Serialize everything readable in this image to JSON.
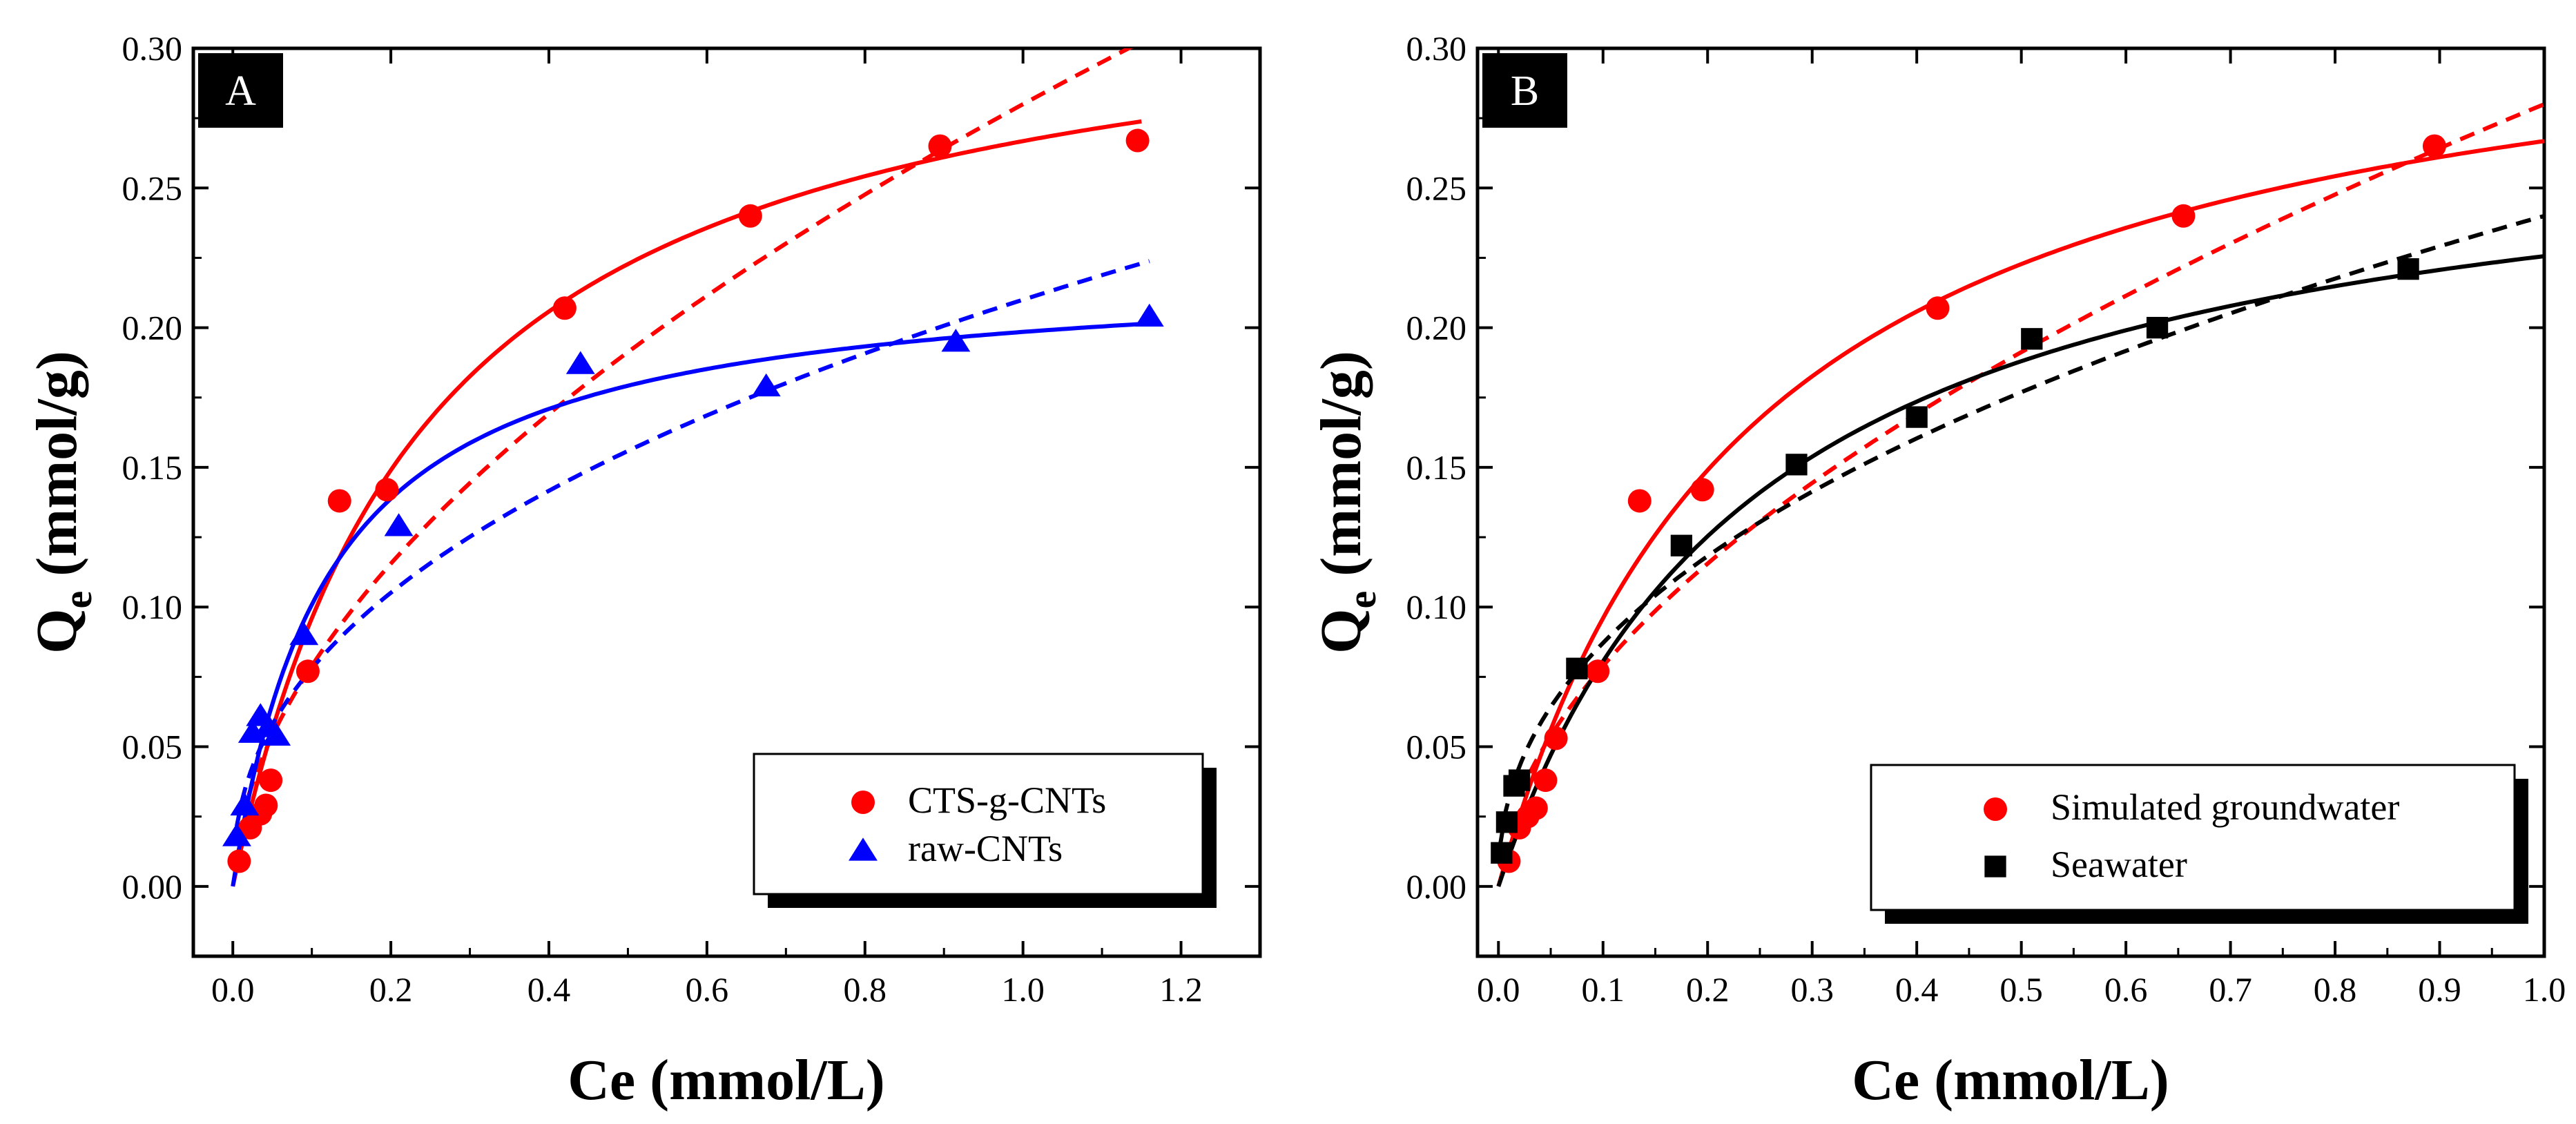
{
  "chart_data": [
    {
      "type": "scatter",
      "panel_label": "A",
      "xlabel": "Ce (mmol/L)",
      "ylabel_main": "Q",
      "ylabel_sub": "e",
      "ylabel_tail": " (mmol/g)",
      "xlim": [
        -0.05,
        1.3
      ],
      "ylim": [
        -0.025,
        0.3
      ],
      "xticks": [
        0.0,
        0.2,
        0.4,
        0.6,
        0.8,
        1.0,
        1.2
      ],
      "xtick_labels": [
        "0.0",
        "0.2",
        "0.4",
        "0.6",
        "0.8",
        "1.0",
        "1.2"
      ],
      "yticks": [
        0.0,
        0.05,
        0.1,
        0.15,
        0.2,
        0.25,
        0.3
      ],
      "ytick_labels": [
        "0.00",
        "0.05",
        "0.10",
        "0.15",
        "0.20",
        "0.25",
        "0.30"
      ],
      "legend_position": "lower-right",
      "series": [
        {
          "name": "CTS-g-CNTs",
          "marker": "circle",
          "color": "#ff0000",
          "x": [
            0.008,
            0.022,
            0.035,
            0.042,
            0.048,
            0.095,
            0.135,
            0.195,
            0.42,
            0.655,
            0.895,
            1.145
          ],
          "y": [
            0.009,
            0.021,
            0.026,
            0.029,
            0.038,
            0.077,
            0.138,
            0.142,
            0.207,
            0.24,
            0.265,
            0.267
          ],
          "fit_solid": {
            "model": "langmuir",
            "qm": 0.3325,
            "k": 4.06,
            "x_range": [
              0.0,
              1.15
            ]
          },
          "fit_dashed": {
            "model": "freundlich",
            "kf": 0.28,
            "n_inv": 0.55,
            "x_range": [
              0.02,
              1.15
            ]
          }
        },
        {
          "name": "raw-CNTs",
          "marker": "triangle",
          "color": "#0000ff",
          "x": [
            0.005,
            0.015,
            0.025,
            0.035,
            0.045,
            0.055,
            0.09,
            0.21,
            0.44,
            0.675,
            0.915,
            1.16
          ],
          "y": [
            0.018,
            0.029,
            0.055,
            0.061,
            0.057,
            0.054,
            0.09,
            0.129,
            0.187,
            0.179,
            0.195,
            0.204
          ],
          "fit_solid": {
            "model": "langmuir",
            "qm": 0.2224,
            "k": 8.3,
            "x_range": [
              0.0,
              1.16
            ]
          },
          "fit_dashed": {
            "model": "freundlich",
            "kf": 0.21,
            "n_inv": 0.43,
            "x_range": [
              0.005,
              1.16
            ]
          }
        }
      ]
    },
    {
      "type": "scatter",
      "panel_label": "B",
      "xlabel": "Ce (mmol/L)",
      "ylabel_main": "Q",
      "ylabel_sub": "e",
      "ylabel_tail": " (mmol/g)",
      "xlim": [
        -0.02,
        1.0
      ],
      "ylim": [
        -0.025,
        0.3
      ],
      "xticks": [
        0.0,
        0.1,
        0.2,
        0.3,
        0.4,
        0.5,
        0.6,
        0.7,
        0.8,
        0.9,
        1.0
      ],
      "xtick_labels": [
        "0.0",
        "0.1",
        "0.2",
        "0.3",
        "0.4",
        "0.5",
        "0.6",
        "0.7",
        "0.8",
        "0.9",
        "1.0"
      ],
      "yticks": [
        0.0,
        0.05,
        0.1,
        0.15,
        0.2,
        0.25,
        0.3
      ],
      "ytick_labels": [
        "0.00",
        "0.05",
        "0.10",
        "0.15",
        "0.20",
        "0.25",
        "0.30"
      ],
      "legend_position": "lower-right",
      "series": [
        {
          "name": "Simulated groundwater",
          "marker": "circle",
          "color": "#ff0000",
          "x": [
            0.01,
            0.02,
            0.028,
            0.036,
            0.045,
            0.055,
            0.095,
            0.135,
            0.195,
            0.42,
            0.655,
            0.895
          ],
          "y": [
            0.009,
            0.021,
            0.025,
            0.028,
            0.038,
            0.053,
            0.077,
            0.138,
            0.142,
            0.207,
            0.24,
            0.265
          ],
          "fit_solid": {
            "model": "langmuir",
            "qm": 0.3325,
            "k": 4.06,
            "x_range": [
              0.0,
              1.0
            ]
          },
          "fit_dashed": {
            "model": "freundlich",
            "kf": 0.28,
            "n_inv": 0.55,
            "x_range": [
              0.02,
              1.0
            ]
          }
        },
        {
          "name": "Seawater",
          "marker": "square",
          "color": "#000000",
          "x": [
            0.003,
            0.008,
            0.015,
            0.02,
            0.075,
            0.175,
            0.285,
            0.4,
            0.51,
            0.63,
            0.87
          ],
          "y": [
            0.012,
            0.023,
            0.036,
            0.038,
            0.078,
            0.122,
            0.151,
            0.168,
            0.196,
            0.2,
            0.221
          ],
          "fit_solid": {
            "model": "langmuir",
            "qm": 0.282,
            "k": 4.0,
            "x_range": [
              0.0,
              1.0
            ]
          },
          "fit_dashed": {
            "model": "freundlich",
            "kf": 0.24,
            "n_inv": 0.44,
            "x_range": [
              0.002,
              1.0
            ]
          }
        }
      ]
    }
  ]
}
